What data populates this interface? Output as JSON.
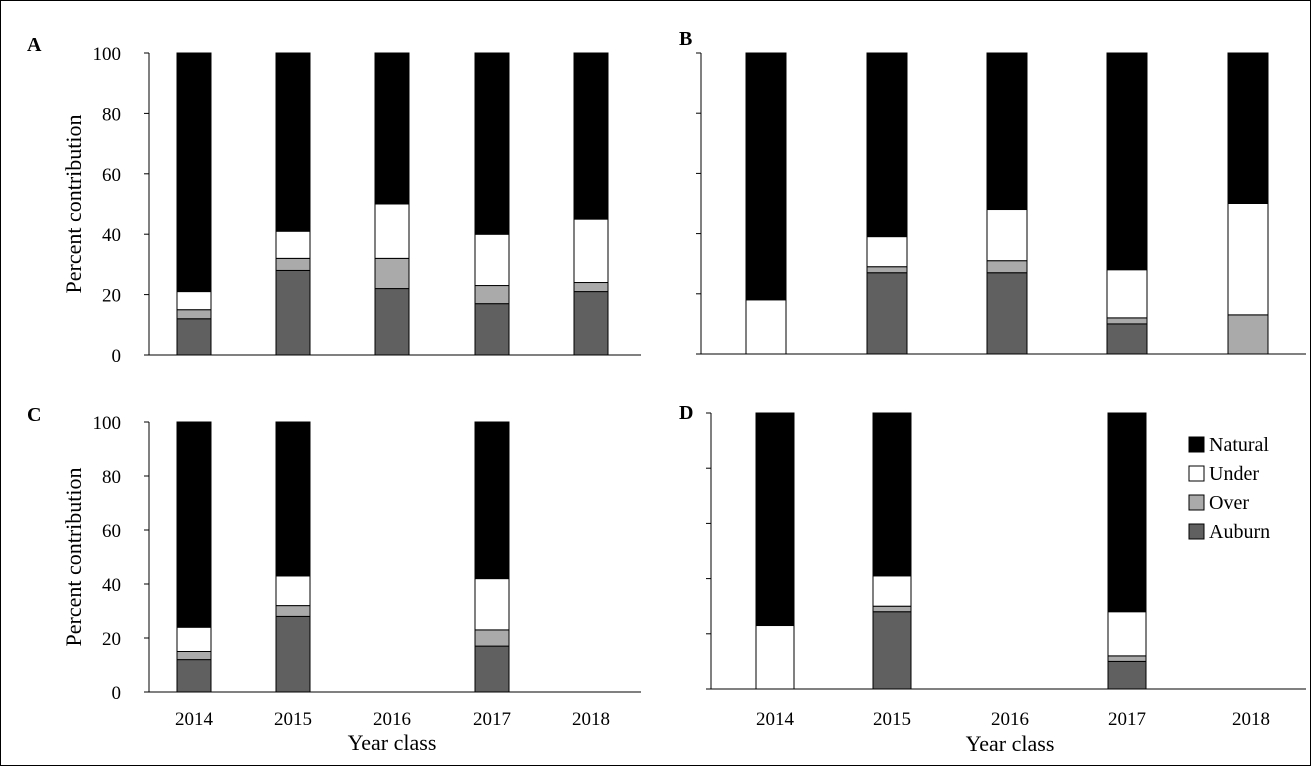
{
  "colors": {
    "Natural": "#000000",
    "Under": "#ffffff",
    "Over": "#aaaaaa",
    "Auburn": "#606060"
  },
  "legend": [
    "Natural",
    "Under",
    "Over",
    "Auburn"
  ],
  "chart_data": [
    {
      "type": "bar",
      "stacked": true,
      "panel": "A",
      "ylabel": "Percent contribution",
      "xlabel": "",
      "ylim": [
        0,
        100
      ],
      "yticks": [
        "0",
        "20",
        "40",
        "60",
        "80",
        "100"
      ],
      "categories": [
        "2014",
        "2015",
        "2016",
        "2017",
        "2018"
      ],
      "show_x_ticks": false,
      "series": [
        {
          "name": "Auburn",
          "values": [
            12,
            28,
            22,
            17,
            21
          ]
        },
        {
          "name": "Over",
          "values": [
            3,
            4,
            10,
            6,
            3
          ]
        },
        {
          "name": "Under",
          "values": [
            6,
            9,
            18,
            17,
            21
          ]
        },
        {
          "name": "Natural",
          "values": [
            79,
            59,
            50,
            60,
            55
          ]
        }
      ]
    },
    {
      "type": "bar",
      "stacked": true,
      "panel": "B",
      "ylabel": "",
      "xlabel": "",
      "ylim": [
        0,
        100
      ],
      "yticks": [],
      "categories": [
        "2014",
        "2015",
        "2016",
        "2017",
        "2018"
      ],
      "show_x_ticks": false,
      "series": [
        {
          "name": "Auburn",
          "values": [
            0,
            27,
            27,
            10,
            0
          ]
        },
        {
          "name": "Over",
          "values": [
            0,
            2,
            4,
            2,
            13
          ]
        },
        {
          "name": "Under",
          "values": [
            18,
            10,
            17,
            16,
            37
          ]
        },
        {
          "name": "Natural",
          "values": [
            82,
            61,
            52,
            72,
            50
          ]
        }
      ]
    },
    {
      "type": "bar",
      "stacked": true,
      "panel": "C",
      "ylabel": "Percent contribution",
      "xlabel": "Year class",
      "ylim": [
        0,
        100
      ],
      "yticks": [
        "0",
        "20",
        "40",
        "60",
        "80",
        "100"
      ],
      "categories": [
        "2014",
        "2015",
        "2016",
        "2017",
        "2018"
      ],
      "show_x_ticks": true,
      "series": [
        {
          "name": "Auburn",
          "values": [
            12,
            28,
            0,
            17,
            0
          ]
        },
        {
          "name": "Over",
          "values": [
            3,
            4,
            0,
            6,
            0
          ]
        },
        {
          "name": "Under",
          "values": [
            9,
            11,
            0,
            19,
            0
          ]
        },
        {
          "name": "Natural",
          "values": [
            76,
            57,
            0,
            58,
            0
          ]
        }
      ]
    },
    {
      "type": "bar",
      "stacked": true,
      "panel": "D",
      "ylabel": "",
      "xlabel": "Year class",
      "ylim": [
        0,
        100
      ],
      "yticks": [],
      "categories": [
        "2014",
        "2015",
        "2016",
        "2017",
        "2018"
      ],
      "show_x_ticks": true,
      "legend_position": "top-right",
      "series": [
        {
          "name": "Auburn",
          "values": [
            0,
            28,
            0,
            10,
            0
          ]
        },
        {
          "name": "Over",
          "values": [
            0,
            2,
            0,
            2,
            0
          ]
        },
        {
          "name": "Under",
          "values": [
            23,
            11,
            0,
            16,
            0
          ]
        },
        {
          "name": "Natural",
          "values": [
            77,
            59,
            0,
            72,
            0
          ]
        }
      ]
    }
  ]
}
